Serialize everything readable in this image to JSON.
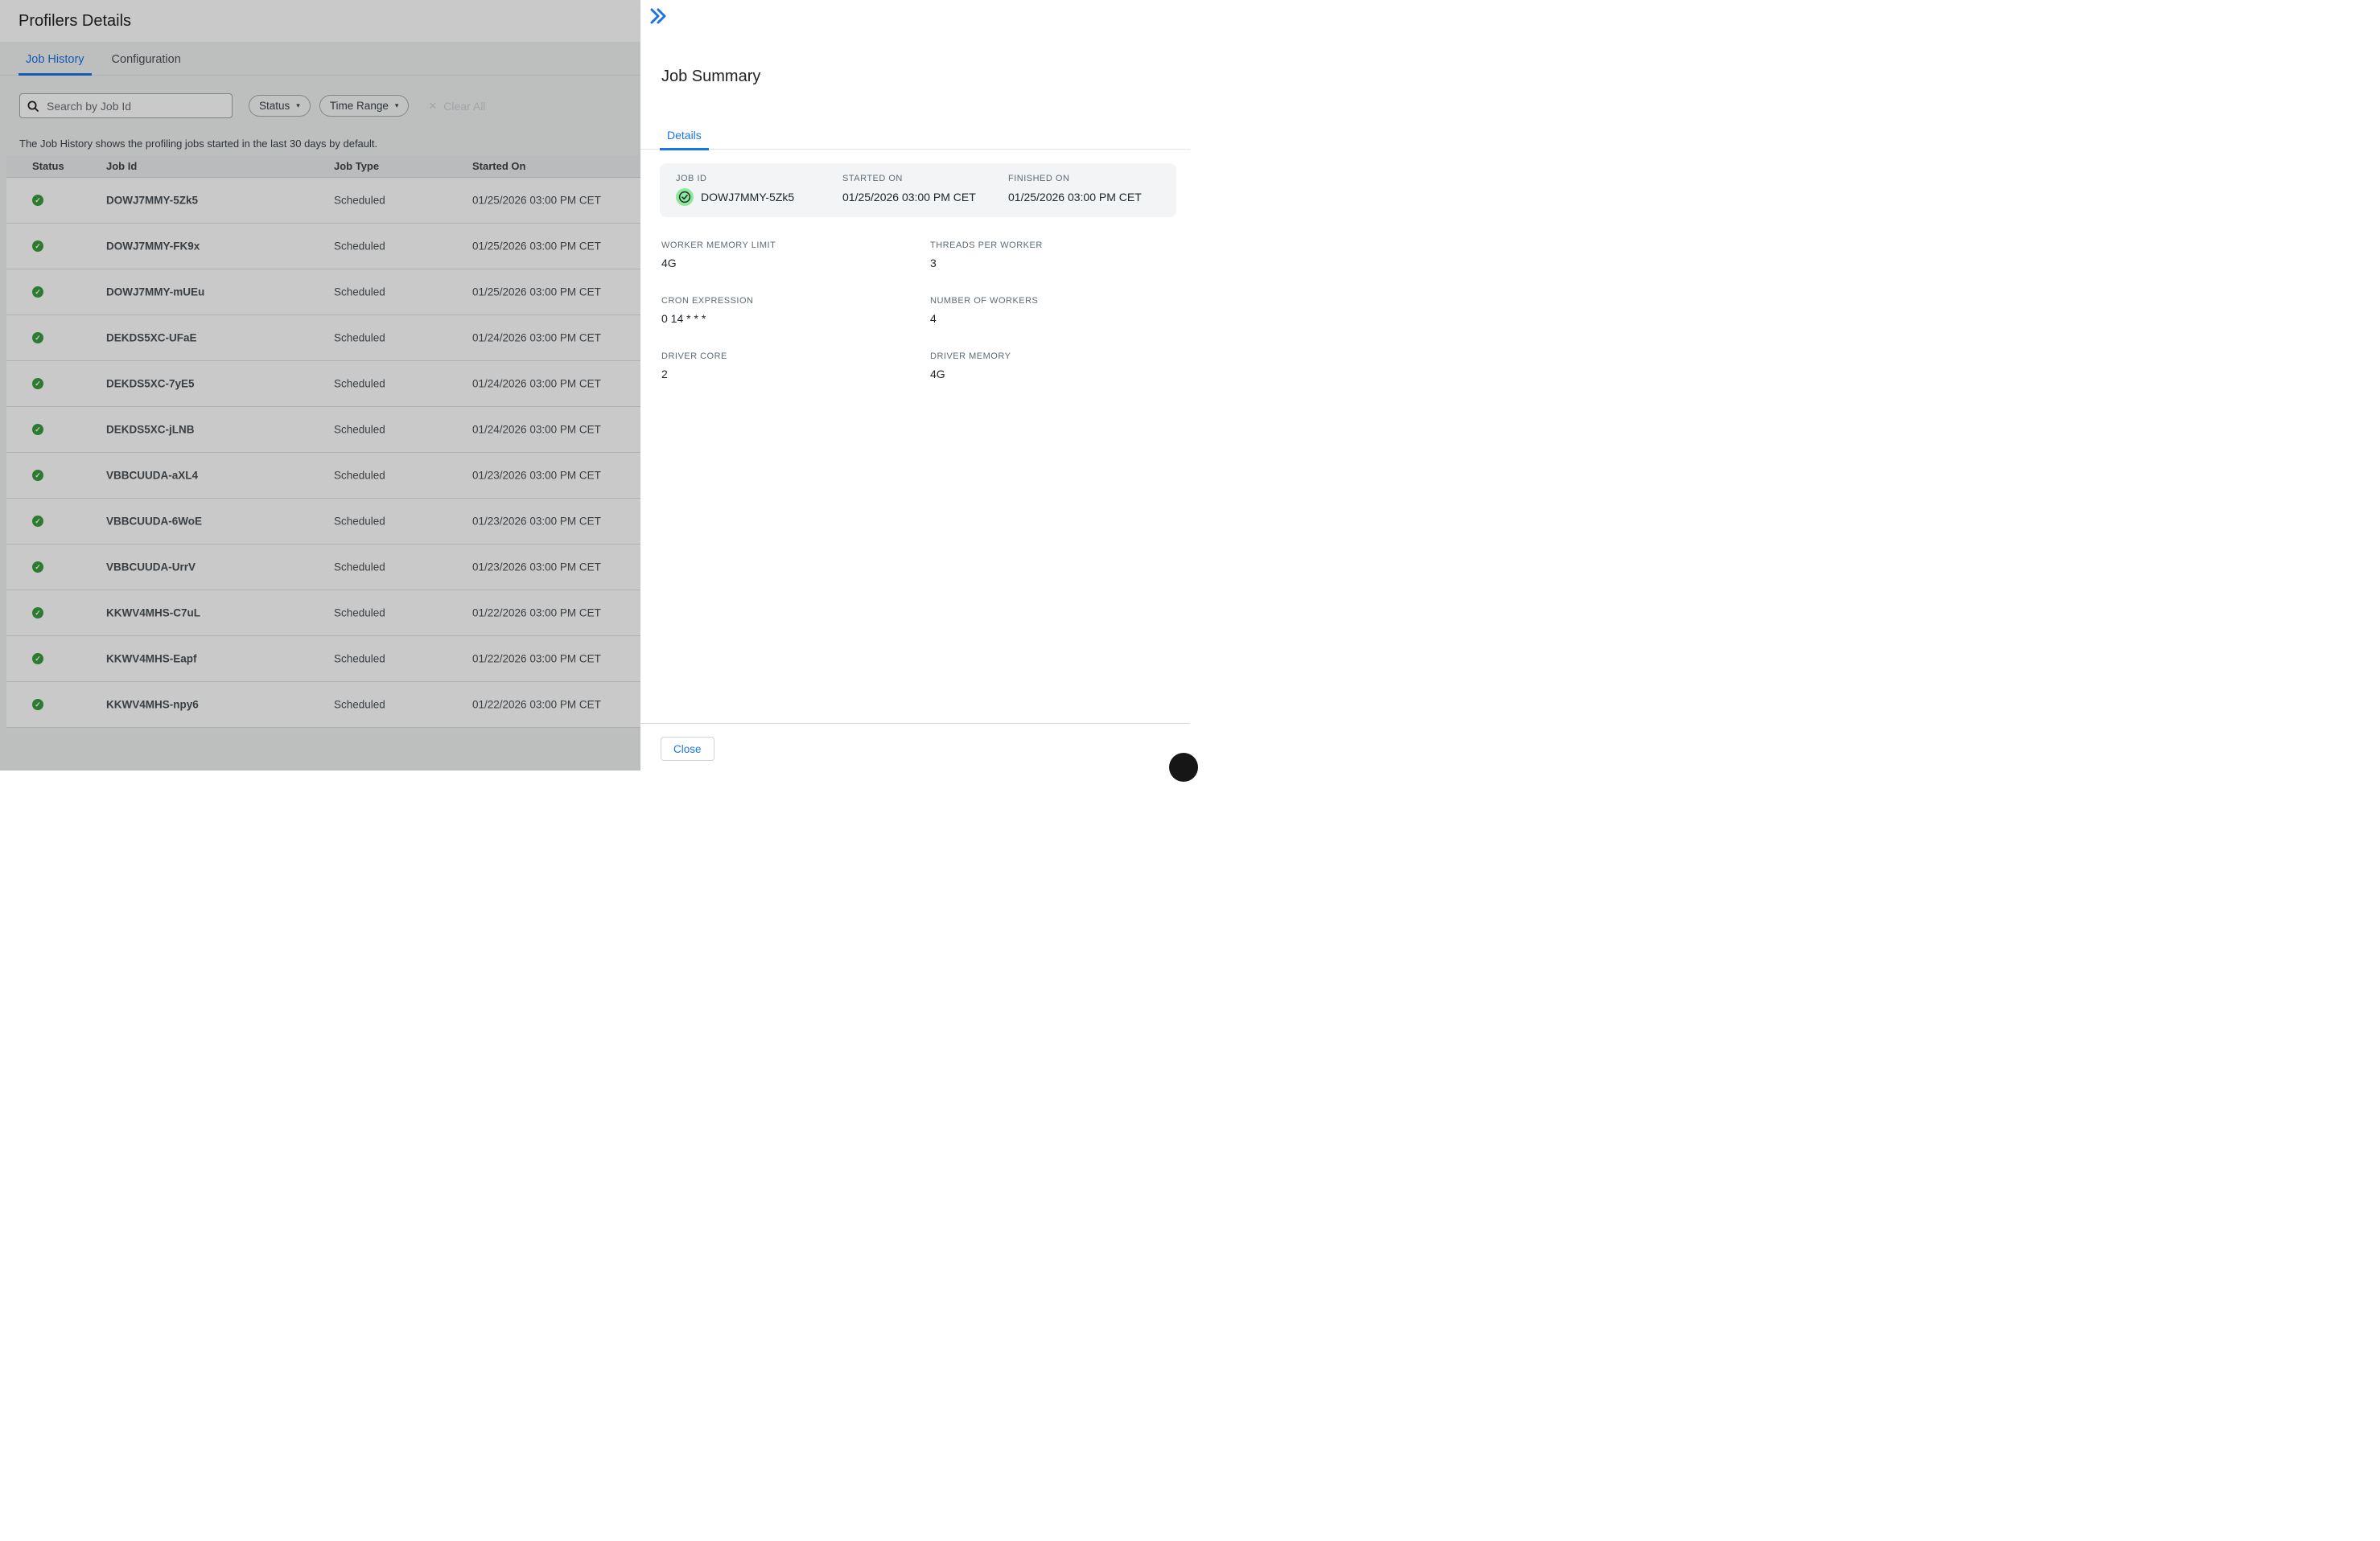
{
  "left": {
    "title": "Profilers Details",
    "tabs": [
      {
        "label": "Job History",
        "active": true
      },
      {
        "label": "Configuration",
        "active": false
      }
    ],
    "search": {
      "placeholder": "Search by Job Id"
    },
    "filters": {
      "status_label": "Status",
      "time_range_label": "Time Range",
      "clear_all_label": "Clear All"
    },
    "info_text": "The Job History shows the profiling jobs started in the last 30 days by default.",
    "table": {
      "columns": [
        "Status",
        "Job Id",
        "Job Type",
        "Started On"
      ],
      "rows": [
        {
          "status": "success",
          "job_id": "DOWJ7MMY-5Zk5",
          "job_type": "Scheduled",
          "started_on": "01/25/2026 03:00 PM CET"
        },
        {
          "status": "success",
          "job_id": "DOWJ7MMY-FK9x",
          "job_type": "Scheduled",
          "started_on": "01/25/2026 03:00 PM CET"
        },
        {
          "status": "success",
          "job_id": "DOWJ7MMY-mUEu",
          "job_type": "Scheduled",
          "started_on": "01/25/2026 03:00 PM CET"
        },
        {
          "status": "success",
          "job_id": "DEKDS5XC-UFaE",
          "job_type": "Scheduled",
          "started_on": "01/24/2026 03:00 PM CET"
        },
        {
          "status": "success",
          "job_id": "DEKDS5XC-7yE5",
          "job_type": "Scheduled",
          "started_on": "01/24/2026 03:00 PM CET"
        },
        {
          "status": "success",
          "job_id": "DEKDS5XC-jLNB",
          "job_type": "Scheduled",
          "started_on": "01/24/2026 03:00 PM CET"
        },
        {
          "status": "success",
          "job_id": "VBBCUUDA-aXL4",
          "job_type": "Scheduled",
          "started_on": "01/23/2026 03:00 PM CET"
        },
        {
          "status": "success",
          "job_id": "VBBCUUDA-6WoE",
          "job_type": "Scheduled",
          "started_on": "01/23/2026 03:00 PM CET"
        },
        {
          "status": "success",
          "job_id": "VBBCUUDA-UrrV",
          "job_type": "Scheduled",
          "started_on": "01/23/2026 03:00 PM CET"
        },
        {
          "status": "success",
          "job_id": "KKWV4MHS-C7uL",
          "job_type": "Scheduled",
          "started_on": "01/22/2026 03:00 PM CET"
        },
        {
          "status": "success",
          "job_id": "KKWV4MHS-Eapf",
          "job_type": "Scheduled",
          "started_on": "01/22/2026 03:00 PM CET"
        },
        {
          "status": "success",
          "job_id": "KKWV4MHS-npy6",
          "job_type": "Scheduled",
          "started_on": "01/22/2026 03:00 PM CET"
        }
      ]
    }
  },
  "panel": {
    "title": "Job Summary",
    "tab_label": "Details",
    "summary": {
      "job_id_label": "JOB ID",
      "job_id": "DOWJ7MMY-5Zk5",
      "job_status": "success",
      "started_on_label": "STARTED ON",
      "started_on": "01/25/2026 03:00 PM CET",
      "finished_on_label": "FINISHED ON",
      "finished_on": "01/25/2026 03:00 PM CET"
    },
    "fields": [
      {
        "label": "WORKER MEMORY LIMIT",
        "value": "4G"
      },
      {
        "label": "THREADS PER WORKER",
        "value": "3"
      },
      {
        "label": "CRON EXPRESSION",
        "value": "0 14 * * *"
      },
      {
        "label": "NUMBER OF WORKERS",
        "value": "4"
      },
      {
        "label": "DRIVER CORE",
        "value": "2"
      },
      {
        "label": "DRIVER MEMORY",
        "value": "4G"
      }
    ],
    "close_label": "Close"
  },
  "colors": {
    "accent_blue": "#1a73e8",
    "link_blue": "#1973e8",
    "status_green": "#3a9d3f",
    "badge_green": "#8ce99a",
    "scrim": "rgba(0,0,0,0.21)"
  },
  "icons": {
    "check_glyph": "✓",
    "caret_glyph": "▾",
    "clear_glyph": "✕"
  }
}
